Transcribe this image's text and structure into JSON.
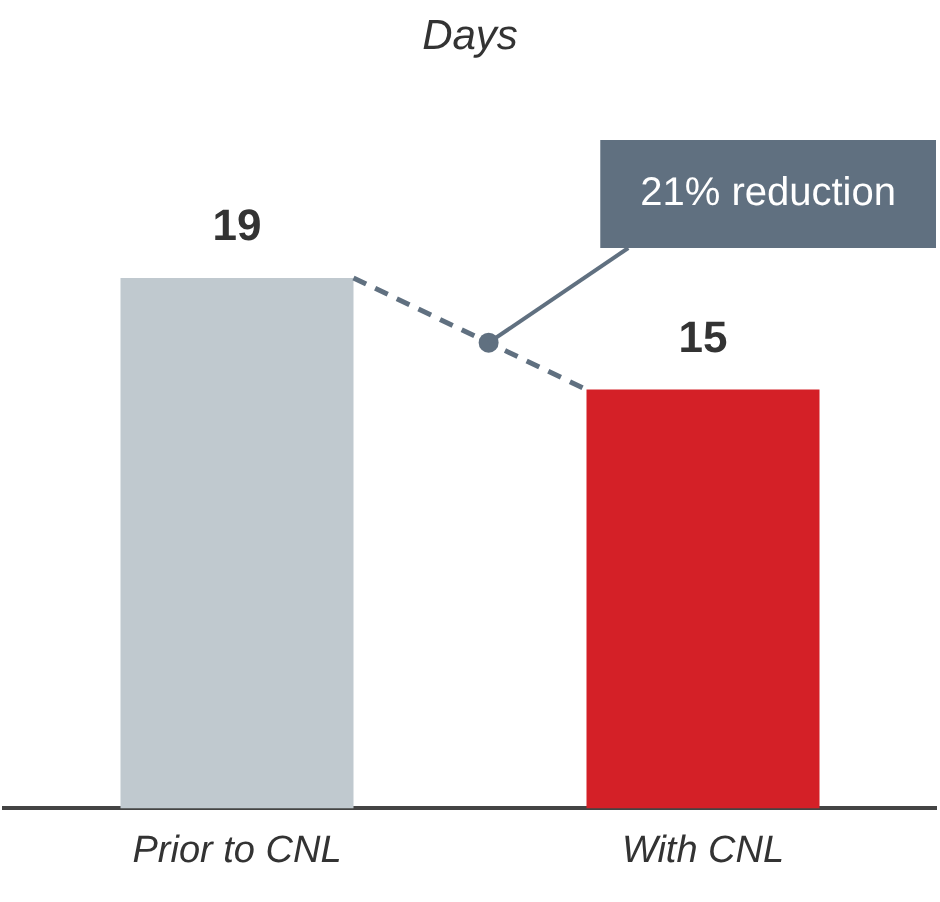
{
  "chart_data": {
    "type": "bar",
    "title": "Days",
    "categories": [
      "Prior to CNL",
      "With CNL"
    ],
    "values": [
      19,
      15
    ],
    "colors": [
      "#c0c9cf",
      "#d42027"
    ],
    "data_labels": true,
    "legend": false,
    "grid": false,
    "annotations": [
      "21% reduction"
    ]
  }
}
